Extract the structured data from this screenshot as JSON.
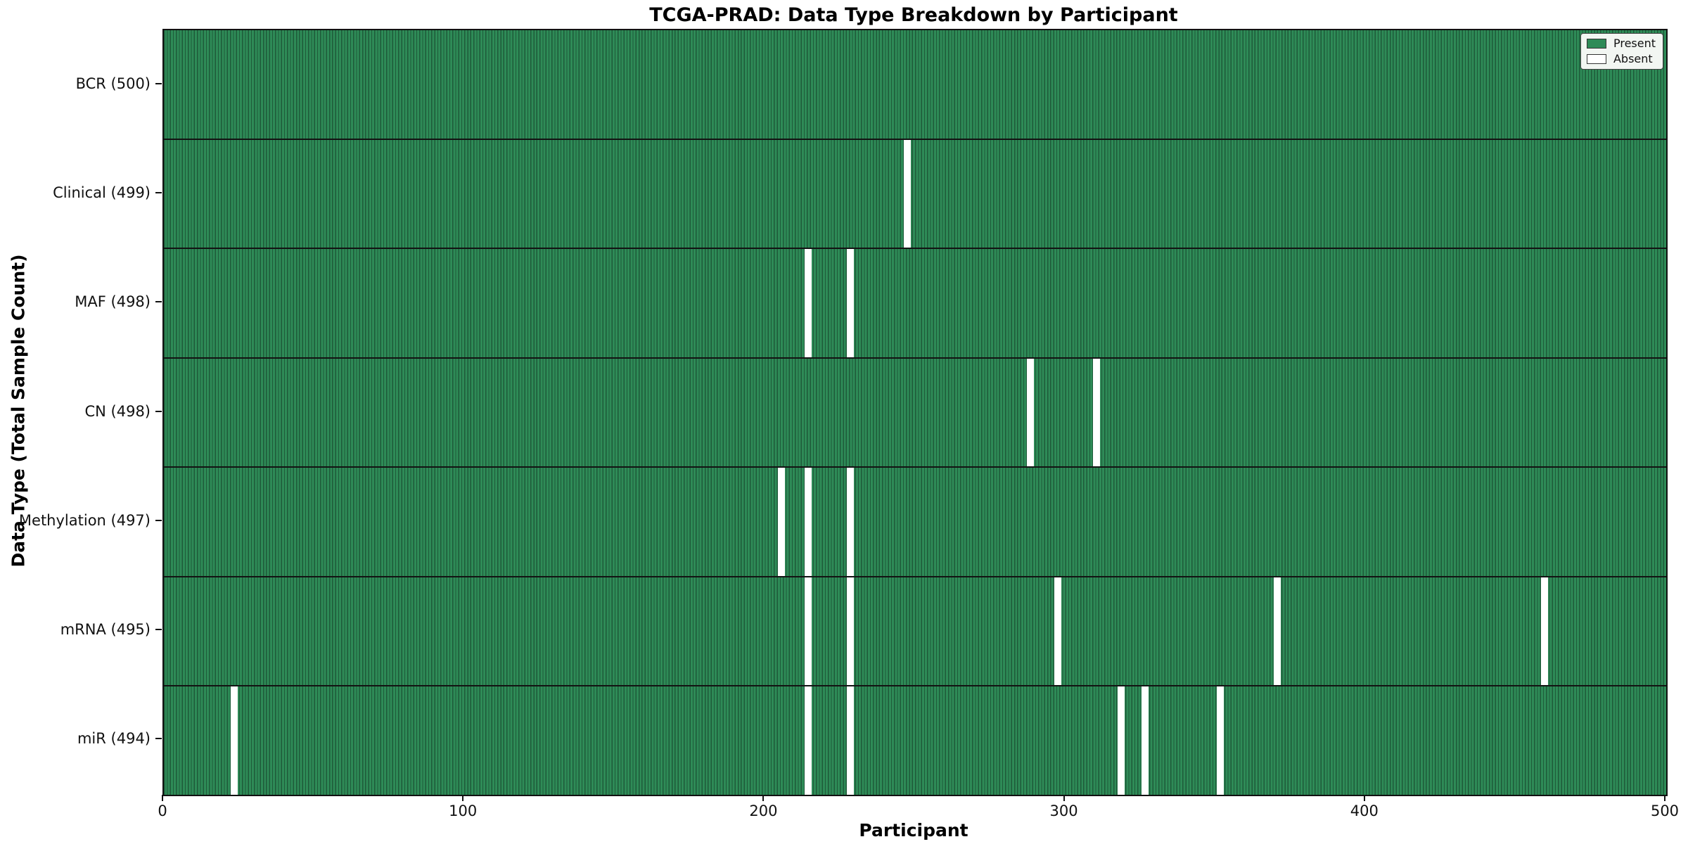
{
  "title": "TCGA-PRAD: Data Type Breakdown by Participant",
  "x_axis_label": "Participant",
  "y_axis_label": "Data Type (Total Sample Count)",
  "legend": {
    "present_label": "Present",
    "absent_label": "Absent"
  },
  "colors": {
    "present": "#2e8b57",
    "present_edge": "#1e5a39",
    "absent": "#ffffff",
    "separator": "#131313",
    "legend_bg": "#f2f6f2"
  },
  "chart_data": {
    "type": "heatmap",
    "title": "TCGA-PRAD: Data Type Breakdown by Participant",
    "xlabel": "Participant",
    "ylabel": "Data Type (Total Sample Count)",
    "x_range": [
      0,
      500
    ],
    "x_ticks": [
      0,
      100,
      200,
      300,
      400,
      500
    ],
    "n_participants": 500,
    "grid": false,
    "legend_position": "upper right",
    "legend": [
      {
        "label": "Present",
        "color": "#2e8b57"
      },
      {
        "label": "Absent",
        "color": "#ffffff"
      }
    ],
    "rows": [
      {
        "label": "BCR (500)",
        "data_type": "BCR",
        "total_samples": 500,
        "absent_participants": []
      },
      {
        "label": "Clinical (499)",
        "data_type": "Clinical",
        "total_samples": 499,
        "absent_participants": [
          247
        ]
      },
      {
        "label": "MAF (498)",
        "data_type": "MAF",
        "total_samples": 498,
        "absent_participants": [
          214,
          228
        ]
      },
      {
        "label": "CN (498)",
        "data_type": "CN",
        "total_samples": 498,
        "absent_participants": [
          288,
          310
        ]
      },
      {
        "label": "Methylation (497)",
        "data_type": "Methylation",
        "total_samples": 497,
        "absent_participants": [
          205,
          214,
          228
        ]
      },
      {
        "label": "mRNA (495)",
        "data_type": "mRNA",
        "total_samples": 495,
        "absent_participants": [
          214,
          228,
          297,
          370,
          459
        ]
      },
      {
        "label": "miR (494)",
        "data_type": "miR",
        "total_samples": 494,
        "absent_participants": [
          23,
          214,
          228,
          318,
          326,
          351
        ]
      }
    ]
  }
}
